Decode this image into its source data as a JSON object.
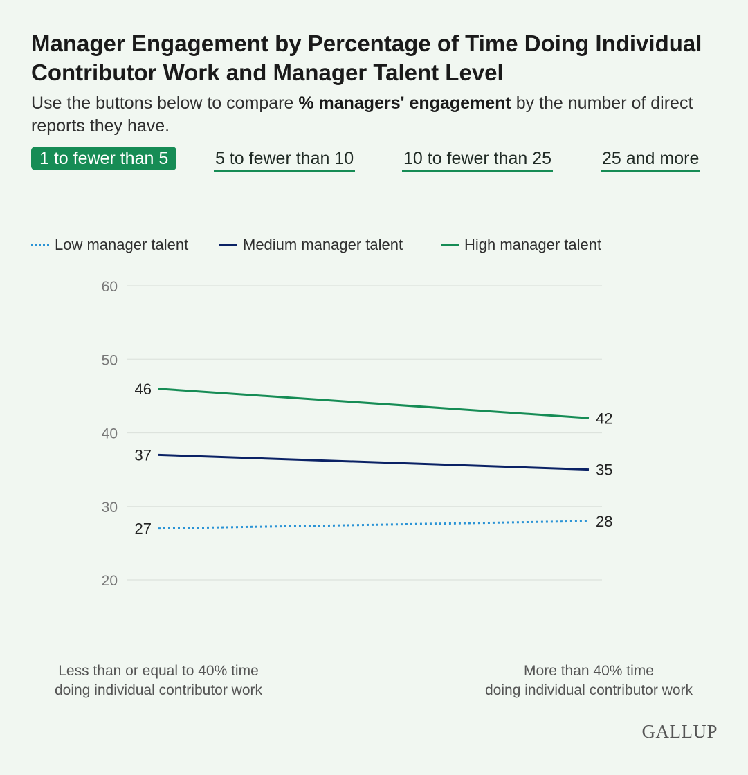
{
  "title": "Manager Engagement by Percentage of Time Doing Individual Contributor Work and Manager Talent Level",
  "subtitle": {
    "before": "Use the buttons below to compare ",
    "bold": "% managers' engagement",
    "after": " by the number of direct reports they have."
  },
  "tabs": [
    {
      "label": "1 to fewer than 5",
      "active": true
    },
    {
      "label": "5 to fewer than 10",
      "active": false
    },
    {
      "label": "10 to fewer than 25",
      "active": false
    },
    {
      "label": "25 and more",
      "active": false
    }
  ],
  "logo": "GALLUP",
  "colors": {
    "low": "#2a93d5",
    "medium": "#0b2265",
    "high": "#168c55",
    "accent": "#168c55",
    "background": "#f1f7f1"
  },
  "chart_data": {
    "type": "line",
    "categories": [
      "Less than or equal to 40% time doing individual contributor work",
      "More than 40% time doing individual contributor work"
    ],
    "x_labels": [
      [
        "Less than or equal to 40% time",
        "doing individual contributor work"
      ],
      [
        "More than 40% time",
        "doing individual contributor work"
      ]
    ],
    "series": [
      {
        "name": "Low manager talent",
        "values": [
          27,
          28
        ],
        "style": "dotted",
        "color": "#2a93d5"
      },
      {
        "name": "Medium manager talent",
        "values": [
          37,
          35
        ],
        "style": "solid",
        "color": "#0b2265"
      },
      {
        "name": "High manager talent",
        "values": [
          46,
          42
        ],
        "style": "solid",
        "color": "#168c55"
      }
    ],
    "ylim": [
      20,
      60
    ],
    "yticks": [
      20,
      30,
      40,
      50,
      60
    ],
    "grid": true,
    "legend_position": "top-left",
    "data_labels": true
  }
}
